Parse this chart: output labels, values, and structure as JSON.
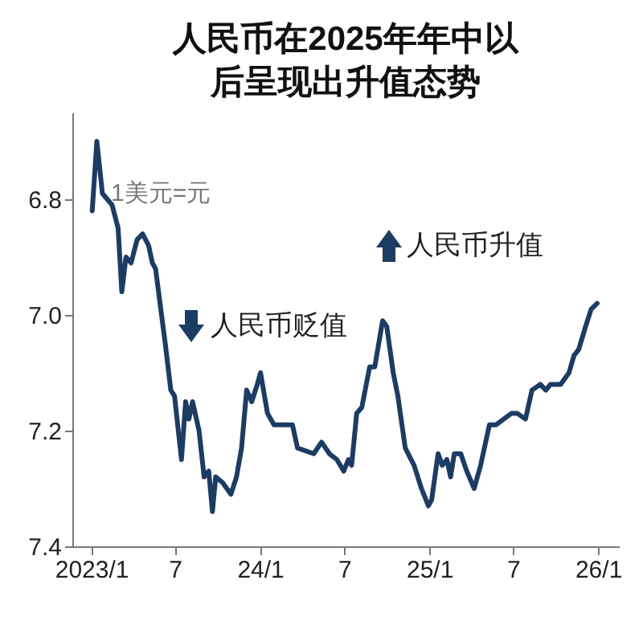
{
  "chart_data": {
    "type": "line",
    "title": "人民币在2025年年中以后呈现出升值态势",
    "annotations": [
      "1美元=元",
      "人民币贬值",
      "人民币升值"
    ],
    "x": [
      "2023-01-03",
      "2023-01-13",
      "2023-01-25",
      "2023-02-15",
      "2023-02-28",
      "2023-03-08",
      "2023-03-17",
      "2023-03-28",
      "2023-04-10",
      "2023-04-22",
      "2023-05-05",
      "2023-05-13",
      "2023-05-20",
      "2023-06-10",
      "2023-06-22",
      "2023-06-30",
      "2023-07-15",
      "2023-07-24",
      "2023-07-31",
      "2023-08-08",
      "2023-08-22",
      "2023-09-02",
      "2023-09-12",
      "2023-09-20",
      "2023-09-27",
      "2023-10-12",
      "2023-10-30",
      "2023-11-11",
      "2023-11-22",
      "2023-12-03",
      "2023-12-14",
      "2023-12-26",
      "2024-01-02",
      "2024-01-17",
      "2024-01-31",
      "2024-03-01",
      "2024-03-11",
      "2024-03-22",
      "2024-04-26",
      "2024-05-13",
      "2024-05-30",
      "2024-06-15",
      "2024-06-30",
      "2024-07-10",
      "2024-07-17",
      "2024-07-28",
      "2024-08-08",
      "2024-08-25",
      "2024-09-05",
      "2024-09-22",
      "2024-10-01",
      "2024-10-15",
      "2024-10-25",
      "2024-11-10",
      "2024-11-29",
      "2024-12-15",
      "2024-12-30",
      "2025-01-06",
      "2025-01-20",
      "2025-01-29",
      "2025-02-08",
      "2025-02-16",
      "2025-02-24",
      "2025-03-10",
      "2025-03-23",
      "2025-04-08",
      "2025-04-22",
      "2025-05-11",
      "2025-05-25",
      "2025-06-28",
      "2025-07-10",
      "2025-07-28",
      "2025-08-11",
      "2025-08-29",
      "2025-09-10",
      "2025-09-20",
      "2025-10-12",
      "2025-10-30",
      "2025-11-10",
      "2025-11-20",
      "2025-12-05",
      "2025-12-17",
      "2025-12-30"
    ],
    "series": [
      {
        "color": "#1d3c63",
        "values": [
          6.82,
          6.7,
          6.79,
          6.81,
          6.85,
          6.96,
          6.9,
          6.91,
          6.87,
          6.86,
          6.88,
          6.91,
          6.92,
          7.05,
          7.13,
          7.14,
          7.25,
          7.15,
          7.18,
          7.15,
          7.2,
          7.28,
          7.27,
          7.34,
          7.28,
          7.29,
          7.31,
          7.28,
          7.23,
          7.13,
          7.15,
          7.12,
          7.1,
          7.17,
          7.19,
          7.19,
          7.19,
          7.23,
          7.24,
          7.22,
          7.24,
          7.25,
          7.27,
          7.25,
          7.26,
          7.17,
          7.16,
          7.09,
          7.09,
          7.01,
          7.02,
          7.1,
          7.14,
          7.23,
          7.26,
          7.3,
          7.33,
          7.32,
          7.24,
          7.26,
          7.25,
          7.28,
          7.24,
          7.24,
          7.27,
          7.3,
          7.26,
          7.19,
          7.19,
          7.17,
          7.17,
          7.18,
          7.13,
          7.12,
          7.13,
          7.12,
          7.12,
          7.1,
          7.07,
          7.06,
          7.02,
          6.99,
          6.98
        ]
      }
    ],
    "xlim": [
      "2022-11-21",
      "2026-02-15"
    ],
    "xticks": [
      {
        "value": "2023-01-01",
        "label": "2023/1"
      },
      {
        "value": "2023-07-01",
        "label": "7"
      },
      {
        "value": "2024-01-01",
        "label": "24/1"
      },
      {
        "value": "2024-07-01",
        "label": "7"
      },
      {
        "value": "2025-01-01",
        "label": "25/1"
      },
      {
        "value": "2025-07-01",
        "label": "7"
      },
      {
        "value": "2026-01-01",
        "label": "26/1"
      }
    ],
    "ylim": [
      7.4,
      6.65
    ],
    "yticks": [
      6.8,
      {
        "value": 7,
        "label": "7.0"
      },
      7.2,
      7.4
    ],
    "grid": false,
    "marker": "none",
    "line_style": "solid"
  }
}
